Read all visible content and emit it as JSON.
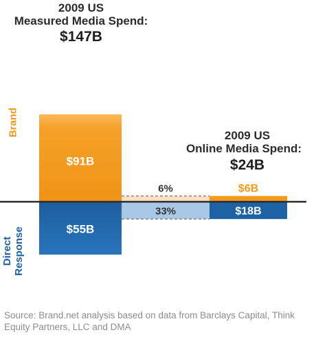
{
  "colors": {
    "brand": "#f39a1b",
    "brand_light": "#fbe1c2",
    "direct": "#1e62a6",
    "direct_light": "#a9c8e6",
    "axis": "#2a2a2a"
  },
  "chart_data": {
    "type": "bar",
    "unit": "$B",
    "segments": [
      "Brand",
      "Direct Response"
    ],
    "bars": [
      {
        "title_line1": "2009 US",
        "title_line2": "Measured Media Spend:",
        "total_label": "$147B",
        "total": 147,
        "brand": 91,
        "direct": 55,
        "brand_label": "$91B",
        "direct_label": "$55B"
      },
      {
        "title_line1": "2009 US",
        "title_line2": "Online Media Spend:",
        "total_label": "$24B",
        "total": 24,
        "brand": 6,
        "direct": 18,
        "brand_label": "$6B",
        "direct_label": "$18B"
      }
    ],
    "connectors": {
      "brand_share_label": "6%",
      "direct_share_label": "33%"
    }
  },
  "labels": {
    "brand": "Brand",
    "direct_line1": "Direct",
    "direct_line2": "Response"
  },
  "source": "Source: Brand.net analysis based on data from Barclays Capital, Think Equity Partners, LLC and DMA"
}
